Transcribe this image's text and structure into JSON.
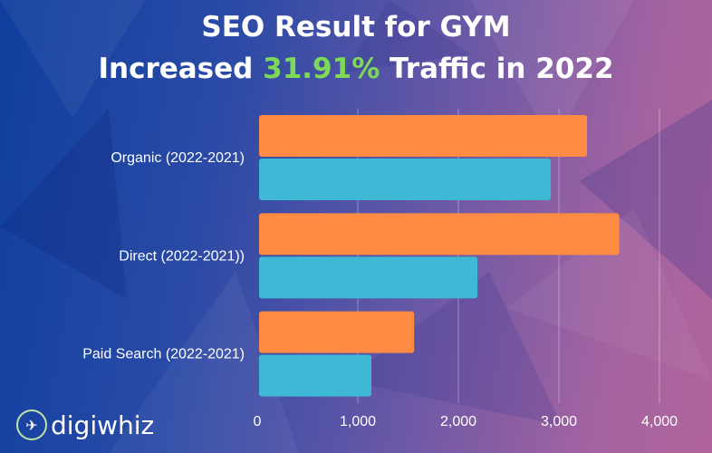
{
  "title_line1": "SEO Result for GYM",
  "title_line2_prefix": "Increased ",
  "title_line2_highlight": "31.91%",
  "title_line2_suffix": " Traffic in 2022",
  "logo_text": "digiwhiz",
  "colors": {
    "highlight": "#7ed957",
    "series_2022": "#ff8c42",
    "series_2021": "#3fb8d6"
  },
  "chart_data": {
    "type": "bar",
    "orientation": "horizontal",
    "categories": [
      "Organic (2022-2021)",
      "Direct (2022-2021))",
      "Paid Search (2022-2021)"
    ],
    "series": [
      {
        "values": [
          3280,
          3600,
          1560
        ],
        "color": "#ff8c42"
      },
      {
        "values": [
          2920,
          2190,
          1135
        ],
        "color": "#3fb8d6"
      }
    ],
    "xlim": [
      0,
      4000
    ],
    "xticks": [
      0,
      1000,
      2000,
      3000,
      4000
    ],
    "xtick_labels": [
      "0",
      "1,000",
      "2,000",
      "3,000",
      "4,000"
    ],
    "grid": true,
    "legend": "none"
  }
}
